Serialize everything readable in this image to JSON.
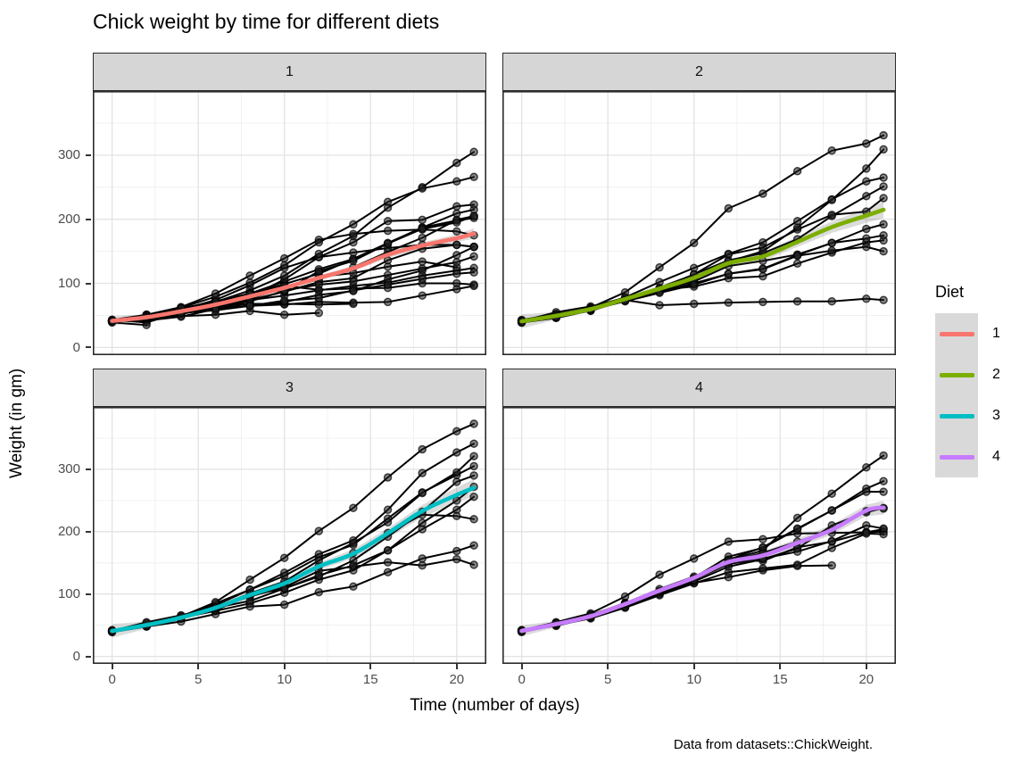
{
  "chart_data": {
    "type": "line",
    "title": "Chick weight by time for different diets",
    "xlabel": "Time (number of days)",
    "ylabel": "Weight (in gm)",
    "caption": "Data from datasets::ChickWeight.",
    "x_ticks": [
      0,
      5,
      10,
      15,
      20
    ],
    "x_minor_ticks": [
      2.5,
      7.5,
      12.5,
      17.5
    ],
    "y_ticks": [
      0,
      100,
      200,
      300
    ],
    "y_minor_ticks": [
      50,
      150,
      250,
      350
    ],
    "xlim": [
      -1.12,
      21.72
    ],
    "ylim": [
      -12,
      400
    ],
    "grid": true,
    "legend": {
      "title": "Diet",
      "position": "right",
      "entries": [
        {
          "label": "1",
          "color": "#F8766D"
        },
        {
          "label": "2",
          "color": "#7CAE00"
        },
        {
          "label": "3",
          "color": "#00BFC4"
        },
        {
          "label": "4",
          "color": "#C77CFF"
        }
      ]
    },
    "times": [
      0,
      2,
      4,
      6,
      8,
      10,
      12,
      14,
      16,
      18,
      20,
      21
    ],
    "facets": [
      {
        "label": "1",
        "color": "#F8766D",
        "smooth": [
          41.4,
          47.2,
          56.5,
          66.8,
          79.7,
          93.1,
          108.5,
          123.4,
          144.6,
          158.9,
          170.4,
          177.8
        ],
        "band": [
          8,
          4,
          3,
          3,
          3,
          3,
          4,
          4,
          5,
          5,
          6,
          8
        ],
        "chicks": [
          {
            "id": "1",
            "weights": [
              42,
              51,
              59,
              64,
              76,
              93,
              106,
              125,
              149,
              171,
              199,
              205
            ]
          },
          {
            "id": "2",
            "weights": [
              40,
              49,
              58,
              72,
              84,
              103,
              122,
              138,
              162,
              187,
              209,
              215
            ]
          },
          {
            "id": "3",
            "weights": [
              43,
              39,
              55,
              67,
              84,
              99,
              115,
              138,
              163,
              187,
              198,
              202
            ]
          },
          {
            "id": "4",
            "weights": [
              42,
              49,
              56,
              67,
              74,
              87,
              102,
              108,
              136,
              154,
              160,
              157
            ]
          },
          {
            "id": "5",
            "weights": [
              41,
              42,
              48,
              60,
              79,
              106,
              141,
              164,
              197,
              199,
              220,
              223
            ]
          },
          {
            "id": "6",
            "weights": [
              41,
              49,
              59,
              74,
              97,
              124,
              141,
              148,
              155,
              160,
              160,
              157
            ]
          },
          {
            "id": "7",
            "weights": [
              41,
              49,
              57,
              71,
              89,
              112,
              146,
              174,
              218,
              250,
              288,
              305
            ]
          },
          {
            "id": "8",
            "weights": [
              42,
              50,
              61,
              71,
              84,
              93,
              110,
              116,
              126,
              134,
              125
            ]
          },
          {
            "id": "9",
            "weights": [
              42,
              51,
              59,
              68,
              85,
              96,
              90,
              92,
              93,
              100,
              100,
              98
            ]
          },
          {
            "id": "10",
            "weights": [
              41,
              44,
              52,
              63,
              74,
              81,
              89,
              96,
              101,
              112,
              120,
              124
            ]
          },
          {
            "id": "11",
            "weights": [
              43,
              51,
              63,
              84,
              112,
              139,
              168,
              177,
              182,
              184,
              181,
              175
            ]
          },
          {
            "id": "12",
            "weights": [
              41,
              49,
              56,
              62,
              72,
              88,
              119,
              135,
              162,
              185,
              195,
              205
            ]
          },
          {
            "id": "13",
            "weights": [
              41,
              48,
              53,
              60,
              65,
              67,
              71,
              70,
              71,
              81,
              91,
              96
            ]
          },
          {
            "id": "14",
            "weights": [
              41,
              49,
              62,
              79,
              101,
              128,
              164,
              192,
              227,
              248,
              259,
              266
            ]
          },
          {
            "id": "15",
            "weights": [
              41,
              49,
              56,
              64,
              68,
              68,
              67,
              68
            ]
          },
          {
            "id": "16",
            "weights": [
              41,
              45,
              49,
              51,
              57,
              51,
              54
            ]
          },
          {
            "id": "17",
            "weights": [
              42,
              51,
              61,
              72,
              83,
              89,
              98,
              103,
              113,
              123,
              133,
              142
            ]
          },
          {
            "id": "18",
            "weights": [
              39,
              35
            ]
          },
          {
            "id": "19",
            "weights": [
              43,
              48,
              55,
              62,
              65,
              71,
              82,
              88,
              106,
              120,
              144,
              157
            ]
          },
          {
            "id": "20",
            "weights": [
              41,
              47,
              54,
              58,
              65,
              73,
              77,
              89,
              98,
              107,
              115,
              117
            ]
          }
        ]
      },
      {
        "label": "2",
        "color": "#7CAE00",
        "smooth": [
          40.7,
          49.4,
          59.8,
          75.4,
          91.7,
          108.5,
          131.3,
          141.9,
          164.7,
          187.7,
          205.6,
          214.7
        ],
        "band": [
          11,
          6,
          4,
          4,
          5,
          5,
          6,
          7,
          8,
          9,
          11,
          13
        ],
        "chicks": [
          {
            "id": "21",
            "weights": [
              40,
              50,
              62,
              86,
              125,
              163,
              217,
              240,
              275,
              307,
              318,
              331
            ]
          },
          {
            "id": "22",
            "weights": [
              41,
              55,
              64,
              77,
              90,
              95,
              108,
              111,
              131,
              148,
              164,
              167
            ]
          },
          {
            "id": "23",
            "weights": [
              43,
              52,
              61,
              73,
              90,
              103,
              127,
              135,
              145,
              163,
              170,
              175
            ]
          },
          {
            "id": "24",
            "weights": [
              42,
              52,
              58,
              74,
              66,
              68,
              70,
              71,
              72,
              72,
              76,
              74
            ]
          },
          {
            "id": "25",
            "weights": [
              40,
              49,
              62,
              78,
              102,
              124,
              146,
              164,
              197,
              231,
              259,
              265
            ]
          },
          {
            "id": "26",
            "weights": [
              42,
              48,
              57,
              74,
              93,
              114,
              136,
              147,
              169,
              205,
              236,
              251
            ]
          },
          {
            "id": "27",
            "weights": [
              39,
              46,
              58,
              73,
              87,
              100,
              115,
              123,
              144,
              163,
              185,
              192
            ]
          },
          {
            "id": "28",
            "weights": [
              39,
              46,
              58,
              73,
              92,
              114,
              145,
              156,
              184,
              207,
              212,
              233
            ]
          },
          {
            "id": "29",
            "weights": [
              39,
              48,
              59,
              74,
              87,
              106,
              134,
              150,
              187,
              230,
              279,
              309
            ]
          },
          {
            "id": "30",
            "weights": [
              42,
              48,
              59,
              72,
              85,
              98,
              115,
              122,
              143,
              151,
              157,
              150
            ]
          }
        ]
      },
      {
        "label": "3",
        "color": "#00BFC4",
        "smooth": [
          40.8,
          50.4,
          62.2,
          77.9,
          98.4,
          117.1,
          144.4,
          164.5,
          197.4,
          233.1,
          258.9,
          270.3
        ],
        "band": [
          11,
          6,
          4,
          4,
          5,
          5,
          6,
          7,
          8,
          10,
          12,
          14
        ],
        "chicks": [
          {
            "id": "31",
            "weights": [
              42,
              53,
              62,
              73,
              85,
              102,
              123,
              138,
              170,
              204,
              235,
              256
            ]
          },
          {
            "id": "32",
            "weights": [
              41,
              49,
              65,
              82,
              107,
              129,
              159,
              179,
              221,
              263,
              291,
              305
            ]
          },
          {
            "id": "33",
            "weights": [
              39,
              50,
              63,
              77,
              96,
              111,
              137,
              144,
              151,
              146,
              156,
              147
            ]
          },
          {
            "id": "34",
            "weights": [
              41,
              49,
              63,
              85,
              107,
              134,
              164,
              186,
              235,
              294,
              327,
              341
            ]
          },
          {
            "id": "35",
            "weights": [
              41,
              53,
              64,
              87,
              123,
              158,
              201,
              238,
              287,
              332,
              361,
              373
            ]
          },
          {
            "id": "36",
            "weights": [
              39,
              48,
              61,
              76,
              98,
              116,
              145,
              166,
              198,
              227,
              225,
              220
            ]
          },
          {
            "id": "37",
            "weights": [
              41,
              48,
              56,
              68,
              80,
              83,
              103,
              112,
              135,
              157,
              169,
              178
            ]
          },
          {
            "id": "38",
            "weights": [
              41,
              49,
              61,
              74,
              98,
              109,
              128,
              154,
              192,
              232,
              280,
              290
            ]
          },
          {
            "id": "39",
            "weights": [
              42,
              50,
              61,
              78,
              89,
              109,
              130,
              146,
              170,
              214,
              250,
              272
            ]
          },
          {
            "id": "40",
            "weights": [
              41,
              55,
              66,
              79,
              101,
              120,
              154,
              182,
              215,
              262,
              295,
              321
            ]
          }
        ]
      },
      {
        "label": "4",
        "color": "#C77CFF",
        "smooth": [
          41.0,
          51.8,
          64.5,
          83.9,
          105.6,
          126.0,
          151.4,
          161.8,
          182.0,
          202.9,
          233.9,
          238.6
        ],
        "band": [
          9,
          5,
          4,
          4,
          4,
          4,
          5,
          6,
          7,
          8,
          9,
          11
        ],
        "chicks": [
          {
            "id": "41",
            "weights": [
              42,
              51,
              66,
              85,
              103,
              124,
              155,
              153,
              175,
              184,
              199,
              204
            ]
          },
          {
            "id": "42",
            "weights": [
              42,
              49,
              63,
              84,
              103,
              126,
              160,
              174,
              204,
              234,
              269,
              281
            ]
          },
          {
            "id": "43",
            "weights": [
              42,
              55,
              69,
              96,
              131,
              157,
              184,
              188,
              197,
              198,
              199,
              200
            ]
          },
          {
            "id": "44",
            "weights": [
              42,
              51,
              65,
              86,
              103,
              118,
              127,
              138,
              145,
              146
            ]
          },
          {
            "id": "45",
            "weights": [
              41,
              50,
              61,
              78,
              98,
              117,
              135,
              141,
              147,
              174,
              197,
              196
            ]
          },
          {
            "id": "46",
            "weights": [
              40,
              52,
              62,
              82,
              101,
              120,
              144,
              156,
              173,
              210,
              231,
              238
            ]
          },
          {
            "id": "47",
            "weights": [
              41,
              53,
              66,
              79,
              100,
              123,
              148,
              157,
              168,
              185,
              210,
              205
            ]
          },
          {
            "id": "48",
            "weights": [
              39,
              50,
              62,
              80,
              104,
              125,
              154,
              170,
              222,
              261,
              303,
              322
            ]
          },
          {
            "id": "49",
            "weights": [
              40,
              53,
              64,
              85,
              108,
              128,
              152,
              166,
              184,
              203,
              233,
              237
            ]
          },
          {
            "id": "50",
            "weights": [
              41,
              54,
              67,
              84,
              105,
              122,
              155,
              175,
              205,
              234,
              264,
              264
            ]
          }
        ]
      }
    ]
  },
  "theme": {
    "background": "#FFFFFF",
    "panel_bg": "#FFFFFF",
    "grid_major": "#E3E3E3",
    "grid_minor": "#F0F0F0",
    "panel_border": "#2B2B2B",
    "strip_bg": "#D6D6D6",
    "strip_border": "#2B2B2B",
    "axis_text": "#4D4D4D",
    "text_color": "#000000",
    "line_color": "#000000",
    "point_fill": "rgba(35,35,35,0.55)",
    "point_stroke": "rgba(0,0,0,0.7)",
    "ribbon": "rgba(60,60,60,0.18)"
  }
}
